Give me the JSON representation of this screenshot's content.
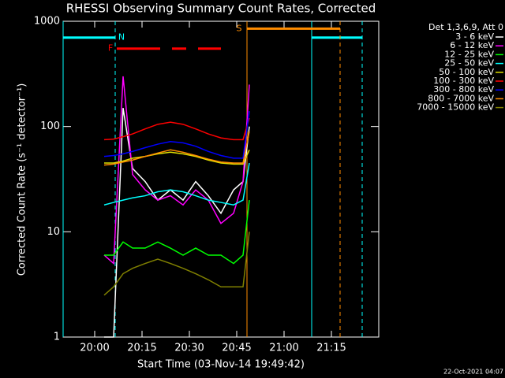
{
  "chart_data": {
    "type": "line",
    "title": "RHESSI Observing Summary Count Rates, Corrected",
    "x_label": "Start Time (03-Nov-14 19:49:42)",
    "y_label": "Corrected Count Rate (s⁻¹ detector⁻¹)",
    "legend_title": "Det 1,3,6,9, Att 0",
    "footer": "22-Oct-2021 04:07",
    "log_y": true,
    "xlim": [
      1190,
      1290
    ],
    "xticks": [
      {
        "value": 1200,
        "label": "20:00"
      },
      {
        "value": 1215,
        "label": "20:15"
      },
      {
        "value": 1230,
        "label": "20:30"
      },
      {
        "value": 1245,
        "label": "20:45"
      },
      {
        "value": 1260,
        "label": "21:00"
      },
      {
        "value": 1275,
        "label": "21:15"
      }
    ],
    "ylim": [
      1,
      1000
    ],
    "yticks": [
      1,
      10,
      100,
      1000
    ],
    "x": [
      1203,
      1206,
      1209,
      1212,
      1216,
      1220,
      1224,
      1228,
      1232,
      1236,
      1240,
      1244,
      1247,
      1249
    ],
    "series": [
      {
        "name": "3 - 6 keV",
        "color": "#ffffff",
        "values": [
          1,
          1,
          150,
          40,
          30,
          20,
          25,
          20,
          30,
          22,
          15,
          25,
          30,
          100
        ]
      },
      {
        "name": "6 - 12 keV",
        "color": "#ff00ff",
        "values": [
          6,
          5,
          300,
          35,
          25,
          20,
          22,
          18,
          25,
          20,
          12,
          15,
          30,
          250
        ]
      },
      {
        "name": "12 - 25 keV",
        "color": "#00ff00",
        "values": [
          6,
          6,
          8,
          7,
          7,
          8,
          7,
          6,
          7,
          6,
          6,
          5,
          6,
          20
        ]
      },
      {
        "name": "25 - 50 keV",
        "color": "#00ffff",
        "values": [
          18,
          19,
          20,
          21,
          22,
          24,
          25,
          24,
          22,
          20,
          19,
          18,
          20,
          45
        ]
      },
      {
        "name": "50 - 100 keV",
        "color": "#dddd00",
        "values": [
          45,
          45,
          47,
          50,
          52,
          55,
          57,
          55,
          52,
          48,
          45,
          44,
          44,
          60
        ]
      },
      {
        "name": "100 - 300 keV",
        "color": "#ff0000",
        "values": [
          75,
          76,
          80,
          85,
          95,
          105,
          110,
          105,
          95,
          85,
          78,
          75,
          75,
          120
        ]
      },
      {
        "name": "300 - 800 keV",
        "color": "#0000ff",
        "values": [
          52,
          53,
          55,
          58,
          63,
          68,
          72,
          70,
          65,
          58,
          53,
          50,
          50,
          140
        ]
      },
      {
        "name": "800 - 7000 keV",
        "color": "#ff8c00",
        "values": [
          43,
          44,
          46,
          48,
          52,
          56,
          60,
          57,
          53,
          49,
          46,
          45,
          45,
          90
        ]
      },
      {
        "name": "7000 - 15000 keV",
        "color": "#808000",
        "values": [
          2.5,
          3,
          4,
          4.5,
          5,
          5.5,
          5,
          4.5,
          4,
          3.5,
          3,
          3,
          3,
          10
        ]
      }
    ],
    "flags": [
      {
        "label": "N",
        "color": "#00ffff",
        "intervals": [
          [
            1190,
            1206.5
          ],
          [
            1268.75,
            1284.75
          ]
        ],
        "level": 700
      },
      {
        "label": "F",
        "color": "#ff0000",
        "intervals": [
          [
            1207,
            1240
          ]
        ],
        "level": 550,
        "dashed": true
      },
      {
        "label": "S",
        "color": "#ff8c00",
        "intervals": [
          [
            1248.25,
            1277.75
          ]
        ],
        "level": 850
      }
    ]
  }
}
